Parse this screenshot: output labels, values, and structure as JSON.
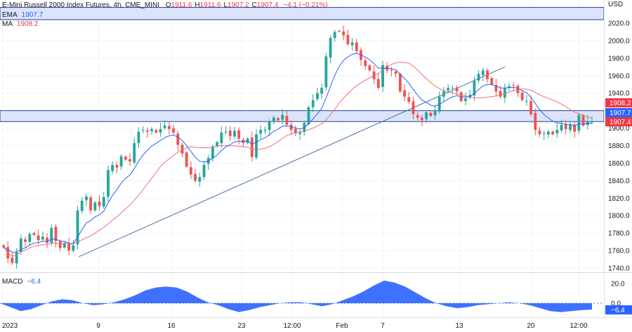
{
  "header": {
    "title": "E-Mini Russell 2000 Index Futures, 4h, CME_MINI",
    "ohlc": [
      {
        "label": "O",
        "value": "1911.6"
      },
      {
        "label": "H",
        "value": "1911.6"
      },
      {
        "label": "L",
        "value": "1907.2"
      },
      {
        "label": "C",
        "value": "1907.4"
      }
    ],
    "change": "−4.1 (−0.21%)"
  },
  "indicators": {
    "ema": {
      "label": "EMA",
      "value": "1907.7"
    },
    "ma": {
      "label": "MA",
      "value": "1908.2"
    },
    "macd": {
      "label": "MACD",
      "value": "−6.4"
    }
  },
  "price_axis": {
    "currency": "USD",
    "ticks": [
      "2020.0",
      "2000.0",
      "1980.0",
      "1960.0",
      "1940.0",
      "1920.0",
      "1900.0",
      "1880.0",
      "1860.0",
      "1840.0",
      "1820.0",
      "1800.0",
      "1780.0",
      "1760.0",
      "1740.0"
    ]
  },
  "price_tags": {
    "ma": {
      "text": "1908.2",
      "color": "#f23645"
    },
    "ema": {
      "text": "1907.7",
      "color": "#2962ff"
    },
    "last": {
      "text": "1907.4",
      "color": "#f23645"
    }
  },
  "macd_axis": {
    "ticks": [
      "20.0",
      "0.0"
    ],
    "last_tag": "−6.4"
  },
  "time_axis": {
    "labels": [
      "2023",
      "9",
      "16",
      "23",
      "12:00",
      "Feb",
      "7",
      "13",
      "20",
      "12:00"
    ]
  },
  "colors": {
    "up": "#26a69a",
    "down": "#ef5350",
    "ema": "#2962ff",
    "ma": "#e57373",
    "zone_fill": "#dbe4fb",
    "zone_stroke": "#2a3f8f",
    "trendline": "#4a6fa5",
    "macd_fill": "#2962ff"
  },
  "chart_data": [
    {
      "type": "candlestick",
      "title": "E-Mini Russell 2000 Index Futures, 4h, CME_MINI",
      "ylabel": "USD",
      "ylim": [
        1738,
        2030
      ],
      "x": [
        "2023",
        "9",
        "16",
        "23",
        "12:00",
        "Feb",
        "7",
        "13",
        "20",
        "12:00"
      ],
      "series": [
        {
          "name": "EMA",
          "type": "line",
          "last": 1907.7
        },
        {
          "name": "MA",
          "type": "line",
          "last": 1908.2
        }
      ],
      "close_path": [
        1764,
        1751,
        1746,
        1758,
        1774,
        1770,
        1779,
        1778,
        1772,
        1776,
        1769,
        1786,
        1771,
        1763,
        1769,
        1760,
        1766,
        1806,
        1817,
        1822,
        1806,
        1815,
        1811,
        1821,
        1852,
        1858,
        1855,
        1868,
        1864,
        1862,
        1883,
        1896,
        1898,
        1896,
        1899,
        1895,
        1899,
        1903,
        1899,
        1895,
        1881,
        1871,
        1856,
        1847,
        1840,
        1844,
        1858,
        1866,
        1879,
        1884,
        1895,
        1896,
        1891,
        1897,
        1888,
        1883,
        1888,
        1867,
        1893,
        1898,
        1898,
        1907,
        1912,
        1909,
        1915,
        1904,
        1898,
        1894,
        1895,
        1906,
        1924,
        1932,
        1940,
        1946,
        1982,
        2003,
        2010,
        2011,
        2006,
        1996,
        1998,
        1988,
        1978,
        1971,
        1966,
        1956,
        1946,
        1972,
        1966,
        1966,
        1962,
        1942,
        1936,
        1930,
        1916,
        1912,
        1909,
        1918,
        1914,
        1920,
        1936,
        1942,
        1946,
        1946,
        1942,
        1931,
        1934,
        1938,
        1954,
        1962,
        1966,
        1956,
        1950,
        1942,
        1936,
        1946,
        1948,
        1949,
        1940,
        1932,
        1931,
        1916,
        1898,
        1893,
        1894,
        1896,
        1893,
        1898,
        1904,
        1899,
        1904,
        1896,
        1915,
        1903,
        1908,
        1907.4
      ],
      "support_zone": [
        1907.5,
        1920
      ],
      "upper_zone": [
        2024,
        2038
      ],
      "trendline": [
        [
          1753,
          "9"
        ],
        [
          1970,
          "13"
        ]
      ]
    },
    {
      "type": "area",
      "title": "MACD",
      "ylim": [
        -12,
        25
      ],
      "last": -6.4,
      "profile": [
        0,
        -4,
        -8,
        -6,
        -2,
        2,
        4,
        3,
        0,
        -2,
        -1,
        1,
        4,
        8,
        13,
        16,
        17,
        16,
        12,
        6,
        1,
        -2,
        -6,
        -9,
        -7,
        -4,
        -2,
        0,
        1,
        1,
        -1,
        -3,
        -1,
        3,
        7,
        12,
        18,
        23,
        21,
        17,
        11,
        5,
        0,
        -3,
        -5,
        -4,
        -2,
        -1,
        0,
        1,
        0,
        -2,
        -5,
        -8,
        -9,
        -8,
        -7,
        -6.4
      ]
    }
  ]
}
